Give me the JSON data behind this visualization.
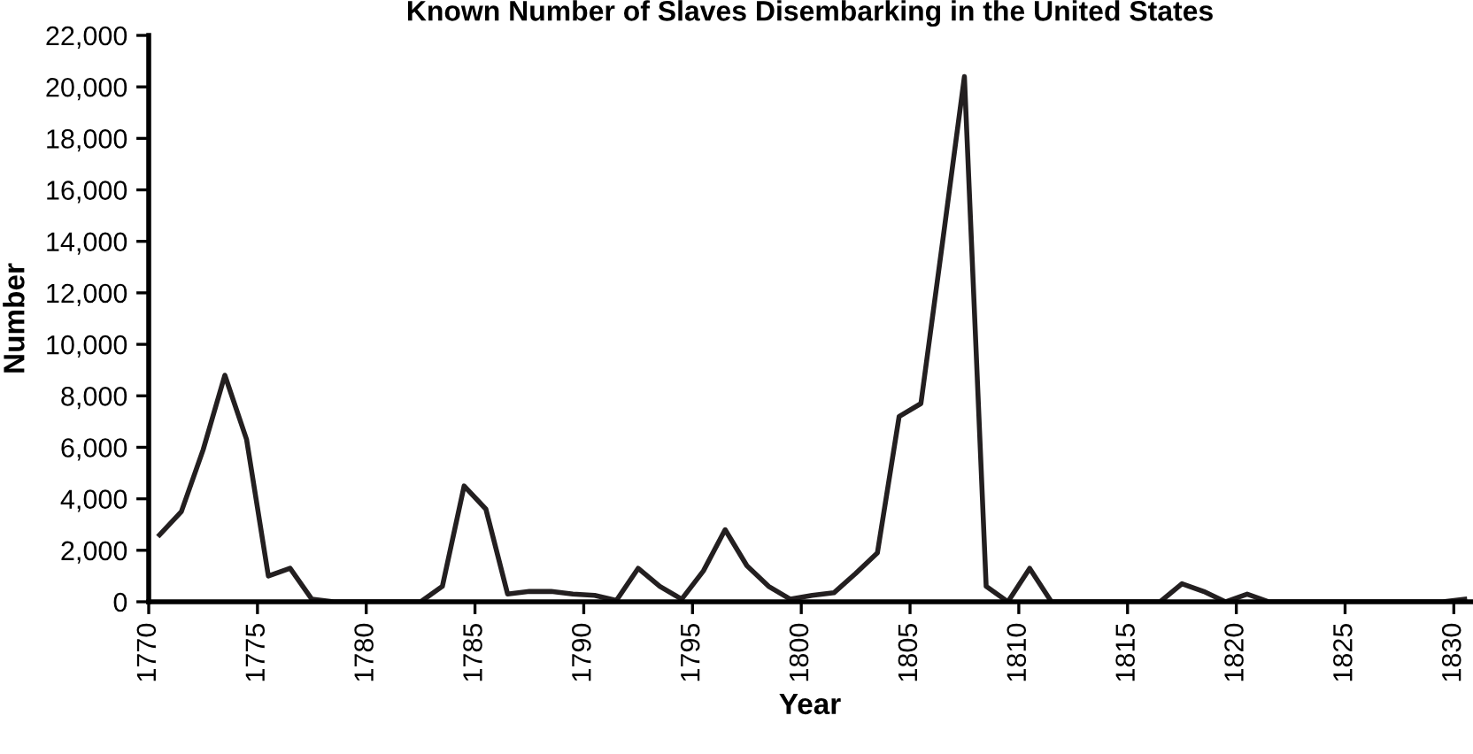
{
  "chart_data": {
    "type": "line",
    "title": "Known Number of Slaves Disembarking in the United States",
    "xlabel": "Year",
    "ylabel": "Number",
    "x": [
      1770.5,
      1771.5,
      1772.5,
      1773.5,
      1774.5,
      1775.5,
      1776.5,
      1777.5,
      1778.5,
      1779.5,
      1780.5,
      1781.5,
      1782.5,
      1783.5,
      1784.5,
      1785.5,
      1786.5,
      1787.5,
      1788.5,
      1789.5,
      1790.5,
      1791.5,
      1792.5,
      1793.5,
      1794.5,
      1795.5,
      1796.5,
      1797.5,
      1798.5,
      1799.5,
      1800.5,
      1801.5,
      1802.5,
      1803.5,
      1804.5,
      1805.5,
      1806.5,
      1807.5,
      1808.5,
      1809.5,
      1810.5,
      1811.5,
      1812.5,
      1813.5,
      1814.5,
      1815.5,
      1816.5,
      1817.5,
      1818.5,
      1819.5,
      1820.5,
      1821.5,
      1822.5,
      1823.5,
      1824.5,
      1825.5,
      1826.5,
      1827.5,
      1828.5,
      1829.5,
      1830.5
    ],
    "series": [
      {
        "color": "#231f20",
        "values": [
          2600,
          3500,
          5900,
          8800,
          6300,
          1000,
          1300,
          100,
          0,
          0,
          0,
          0,
          0,
          600,
          4500,
          3600,
          300,
          400,
          400,
          300,
          250,
          50,
          1300,
          600,
          100,
          1200,
          2800,
          1400,
          600,
          100,
          250,
          350,
          1100,
          1900,
          7200,
          7700,
          14000,
          20400,
          600,
          0,
          1300,
          0,
          0,
          0,
          0,
          0,
          0,
          700,
          400,
          0,
          300,
          0,
          0,
          0,
          0,
          0,
          0,
          0,
          0,
          0,
          100
        ]
      }
    ],
    "xlim": [
      1770,
      1830.8
    ],
    "xticks": [
      1770,
      1775,
      1780,
      1785,
      1790,
      1795,
      1800,
      1805,
      1810,
      1815,
      1820,
      1825,
      1830
    ],
    "ylim": [
      0,
      22000
    ],
    "yticks": [
      {
        "value": 0,
        "label": "0"
      },
      {
        "value": 2000,
        "label": "2,000"
      },
      {
        "value": 4000,
        "label": "4,000"
      },
      {
        "value": 6000,
        "label": "6,000"
      },
      {
        "value": 8000,
        "label": "8,000"
      },
      {
        "value": 10000,
        "label": "10,000"
      },
      {
        "value": 12000,
        "label": "12,000"
      },
      {
        "value": 14000,
        "label": "14,000"
      },
      {
        "value": 16000,
        "label": "16,000"
      },
      {
        "value": 18000,
        "label": "18,000"
      },
      {
        "value": 20000,
        "label": "20,000"
      },
      {
        "value": 22000,
        "label": "22,000"
      }
    ],
    "grid": false,
    "legend": false,
    "marker": "none",
    "line_style": "solid"
  }
}
